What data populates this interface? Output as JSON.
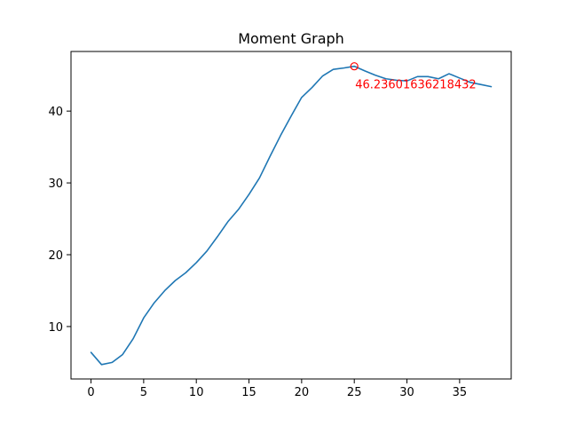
{
  "chart_data": {
    "type": "line",
    "title": "Moment Graph",
    "xlabel": "",
    "ylabel": "",
    "xlim": [
      -1.9,
      39.9
    ],
    "ylim": [
      2.7,
      48.3
    ],
    "x_ticks": [
      0,
      5,
      10,
      15,
      20,
      25,
      30,
      35
    ],
    "y_ticks": [
      10,
      20,
      30,
      40
    ],
    "grid": false,
    "series": [
      {
        "color": "#1f77b4",
        "x": [
          0,
          1,
          2,
          3,
          4,
          5,
          6,
          7,
          8,
          9,
          10,
          11,
          12,
          13,
          14,
          15,
          16,
          17,
          18,
          19,
          20,
          21,
          22,
          23,
          24,
          25,
          26,
          27,
          28,
          29,
          30,
          31,
          32,
          33,
          34,
          35,
          36,
          37,
          38
        ],
        "y": [
          6.4,
          4.7,
          5.0,
          6.1,
          8.3,
          11.2,
          13.3,
          15.0,
          16.4,
          17.5,
          18.9,
          20.5,
          22.5,
          24.6,
          26.3,
          28.4,
          30.7,
          33.7,
          36.6,
          39.3,
          41.9,
          43.3,
          44.9,
          45.8,
          46.0,
          46.24,
          45.6,
          45.0,
          44.5,
          44.3,
          44.2,
          44.8,
          44.8,
          44.5,
          45.2,
          44.6,
          44.0,
          43.7,
          43.4
        ]
      }
    ],
    "max_point": {
      "x": 25,
      "y": 46.23601636218432,
      "label": "46.23601636218432",
      "color": "#ff0000"
    }
  }
}
